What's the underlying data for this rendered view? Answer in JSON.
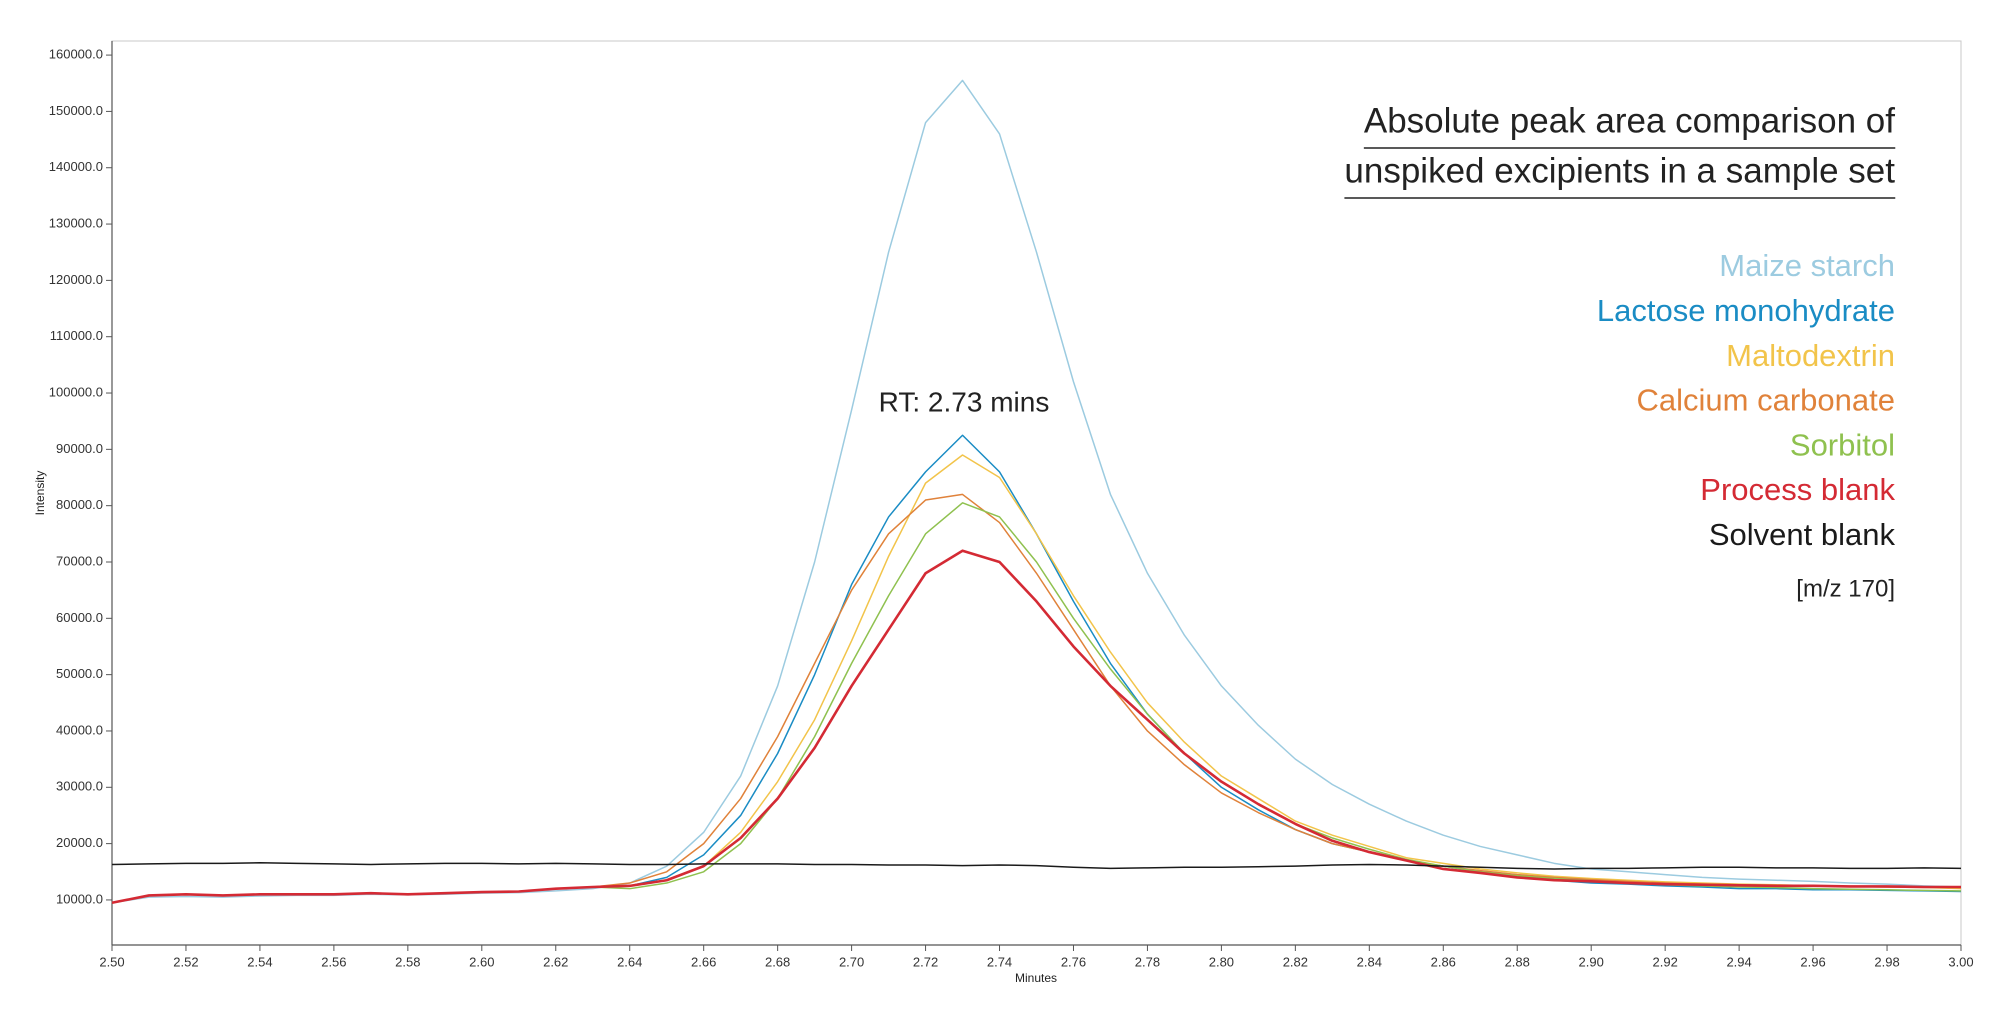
{
  "chart_data": {
    "type": "line",
    "title": [
      "Absolute peak area comparison of",
      "unspiked excipients in a sample set"
    ],
    "annotation": "RT: 2.73 mins",
    "note": "[m/z 170]",
    "xlabel": "Minutes",
    "ylabel": "Intensity",
    "legend": "upper right",
    "x": [
      2.5,
      2.51,
      2.52,
      2.53,
      2.54,
      2.55,
      2.56,
      2.57,
      2.58,
      2.59,
      2.6,
      2.61,
      2.62,
      2.63,
      2.64,
      2.65,
      2.66,
      2.67,
      2.68,
      2.69,
      2.7,
      2.71,
      2.72,
      2.73,
      2.74,
      2.75,
      2.76,
      2.77,
      2.78,
      2.79,
      2.8,
      2.81,
      2.82,
      2.83,
      2.84,
      2.85,
      2.86,
      2.87,
      2.88,
      2.89,
      2.9,
      2.91,
      2.92,
      2.93,
      2.94,
      2.95,
      2.96,
      2.97,
      2.98,
      2.99,
      3.0
    ],
    "series": [
      {
        "name": "Maize starch",
        "color": "#9ccbe0",
        "values": [
          9500,
          10500,
          10600,
          10500,
          10700,
          10800,
          10800,
          11000,
          10900,
          11000,
          11200,
          11300,
          11600,
          12000,
          13000,
          16000,
          22000,
          32000,
          48000,
          70000,
          97000,
          125000,
          148000,
          155500,
          146000,
          125000,
          102000,
          82000,
          68000,
          57000,
          48000,
          41000,
          35000,
          30500,
          27000,
          24000,
          21500,
          19500,
          18000,
          16500,
          15500,
          15000,
          14500,
          14000,
          13700,
          13500,
          13300,
          13000,
          12800,
          12500,
          12300
        ]
      },
      {
        "name": "Lactose monohydrate",
        "color": "#1a8cc4",
        "values": [
          9500,
          10800,
          11000,
          10800,
          11000,
          11000,
          11000,
          11200,
          11000,
          11200,
          11400,
          11500,
          12000,
          12300,
          12500,
          14000,
          18000,
          25000,
          36000,
          50000,
          66000,
          78000,
          86000,
          92500,
          86000,
          75000,
          63000,
          52000,
          43000,
          36000,
          30000,
          26000,
          22500,
          20000,
          18500,
          17000,
          16000,
          15000,
          14000,
          13500,
          13000,
          12800,
          12500,
          12300,
          12000,
          12000,
          11800,
          11800,
          11700,
          11600,
          11500
        ]
      },
      {
        "name": "Maltodextrin",
        "color": "#f2c44a",
        "values": [
          9500,
          10800,
          11000,
          10800,
          11000,
          11000,
          11000,
          11200,
          11000,
          11200,
          11400,
          11500,
          12000,
          12300,
          12500,
          13500,
          16000,
          22000,
          31000,
          42000,
          56000,
          71000,
          84000,
          89000,
          85000,
          75000,
          64000,
          54000,
          45000,
          38000,
          32000,
          28000,
          24000,
          21500,
          19500,
          17500,
          16500,
          15500,
          14800,
          14200,
          13800,
          13500,
          13200,
          13000,
          12800,
          12700,
          12500,
          12400,
          12300,
          12200,
          12000
        ]
      },
      {
        "name": "Calcium carbonate",
        "color": "#e0823a",
        "values": [
          9500,
          10800,
          11000,
          10800,
          11000,
          11000,
          11000,
          11200,
          11000,
          11200,
          11400,
          11500,
          12000,
          12300,
          13000,
          15000,
          20000,
          28000,
          39000,
          52000,
          65000,
          75000,
          81000,
          82000,
          77000,
          68000,
          58000,
          48000,
          40000,
          34000,
          29000,
          25500,
          22500,
          20000,
          18500,
          17000,
          16000,
          15200,
          14500,
          14000,
          13600,
          13300,
          13000,
          12800,
          12700,
          12600,
          12500,
          12400,
          12300,
          12300,
          12200
        ]
      },
      {
        "name": "Sorbitol",
        "color": "#8fc14f",
        "values": [
          9500,
          10800,
          11000,
          10800,
          11000,
          11000,
          11000,
          11200,
          11000,
          11200,
          11400,
          11500,
          12000,
          12300,
          12000,
          13000,
          15000,
          20000,
          28000,
          39000,
          52000,
          64000,
          75000,
          80500,
          78000,
          70000,
          60000,
          51000,
          43000,
          36000,
          31000,
          27000,
          23500,
          21000,
          19000,
          17200,
          16000,
          15000,
          14300,
          13800,
          13400,
          13000,
          12700,
          12500,
          12300,
          12200,
          12000,
          11900,
          11800,
          11700,
          11600
        ]
      },
      {
        "name": "Process blank",
        "color": "#d42a34",
        "values": [
          9500,
          10800,
          11000,
          10800,
          11000,
          11000,
          11000,
          11200,
          11000,
          11200,
          11400,
          11500,
          12000,
          12300,
          12500,
          13500,
          16000,
          21000,
          28000,
          37000,
          48000,
          58000,
          68000,
          72000,
          70000,
          63000,
          55000,
          48000,
          42000,
          36000,
          31000,
          27000,
          23500,
          20500,
          18500,
          17000,
          15500,
          14800,
          14000,
          13500,
          13300,
          13000,
          12800,
          12700,
          12600,
          12500,
          12500,
          12400,
          12400,
          12300,
          12300
        ]
      },
      {
        "name": "Solvent blank",
        "color": "#1a1a1a",
        "values": [
          16300,
          16400,
          16500,
          16500,
          16600,
          16500,
          16400,
          16300,
          16400,
          16500,
          16500,
          16400,
          16500,
          16400,
          16300,
          16300,
          16400,
          16400,
          16400,
          16300,
          16300,
          16200,
          16200,
          16100,
          16200,
          16100,
          15800,
          15600,
          15700,
          15800,
          15800,
          15900,
          16000,
          16200,
          16300,
          16200,
          16000,
          15800,
          15600,
          15500,
          15600,
          15600,
          15700,
          15800,
          15800,
          15700,
          15700,
          15600,
          15600,
          15700,
          15600
        ]
      }
    ],
    "xlim": [
      2.5,
      3.0
    ],
    "xticks": [
      {
        "value": 2.5,
        "label": "2.50"
      },
      2.52,
      2.54,
      2.56,
      2.58,
      {
        "value": 2.6,
        "label": "2.60"
      },
      2.62,
      2.64,
      2.66,
      2.68,
      {
        "value": 2.7,
        "label": "2.70"
      },
      2.72,
      2.74,
      2.76,
      2.78,
      {
        "value": 2.8,
        "label": "2.80"
      },
      2.82,
      2.84,
      2.86,
      2.88,
      {
        "value": 2.9,
        "label": "2.90"
      },
      2.92,
      2.94,
      2.96,
      2.98,
      {
        "value": 3.0,
        "label": "3.00"
      }
    ],
    "ylim": [
      2000,
      162500
    ],
    "yticks": [
      {
        "value": 10000,
        "label": "10000.0"
      },
      {
        "value": 20000,
        "label": "20000.0"
      },
      {
        "value": 30000,
        "label": "30000.0"
      },
      {
        "value": 40000,
        "label": "40000.0"
      },
      {
        "value": 50000,
        "label": "50000.0"
      },
      {
        "value": 60000,
        "label": "60000.0"
      },
      {
        "value": 70000,
        "label": "70000.0"
      },
      {
        "value": 80000,
        "label": "80000.0"
      },
      {
        "value": 90000,
        "label": "90000.0"
      },
      {
        "value": 100000,
        "label": "100000.0"
      },
      {
        "value": 110000,
        "label": "110000.0"
      },
      {
        "value": 120000,
        "label": "120000.0"
      },
      {
        "value": 130000,
        "label": "130000.0"
      },
      {
        "value": 140000,
        "label": "140000.0"
      },
      {
        "value": 150000,
        "label": "150000.0"
      },
      {
        "value": 160000,
        "label": "160000.0"
      }
    ]
  }
}
